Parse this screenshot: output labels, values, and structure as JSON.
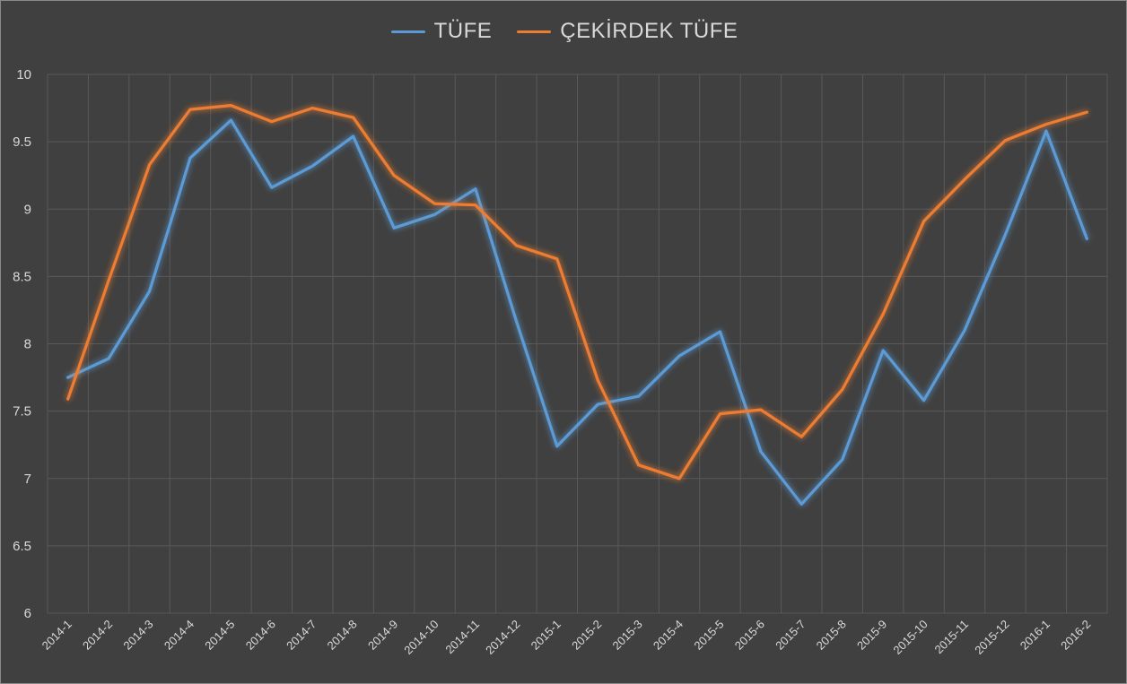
{
  "chart_data": {
    "type": "line",
    "title": "",
    "xlabel": "",
    "ylabel": "",
    "ylim": [
      6,
      10
    ],
    "yticks": [
      6,
      6.5,
      7,
      7.5,
      8,
      8.5,
      9,
      9.5,
      10
    ],
    "grid": true,
    "legend_position": "top",
    "categories": [
      "2014-1",
      "2014-2",
      "2014-3",
      "2014-4",
      "2014-5",
      "2014-6",
      "2014-7",
      "2014-8",
      "2014-9",
      "2014-10",
      "2014-11",
      "2014-12",
      "2015-1",
      "2015-2",
      "2015-3",
      "2015-4",
      "2015-5",
      "2015-6",
      "2015-7",
      "2015-8",
      "2015-9",
      "2015-10",
      "2015-11",
      "2015-12",
      "2016-1",
      "2016-2"
    ],
    "series": [
      {
        "name": "TÜFE",
        "color": "#5b9bd5",
        "values": [
          7.75,
          7.89,
          8.39,
          9.38,
          9.66,
          9.16,
          9.32,
          9.54,
          8.86,
          8.96,
          9.15,
          8.17,
          7.24,
          7.55,
          7.61,
          7.91,
          8.09,
          7.2,
          6.81,
          7.14,
          7.95,
          7.58,
          8.1,
          8.81,
          9.58,
          8.78
        ]
      },
      {
        "name": "ÇEKİRDEK TÜFE",
        "color": "#ed7d31",
        "values": [
          7.59,
          8.47,
          9.33,
          9.74,
          9.77,
          9.65,
          9.75,
          9.68,
          9.25,
          9.04,
          9.03,
          8.73,
          8.63,
          7.73,
          7.1,
          7.0,
          7.48,
          7.51,
          7.31,
          7.66,
          8.22,
          8.91,
          9.22,
          9.51,
          9.63,
          9.72
        ]
      }
    ]
  },
  "colors": {
    "background": "#404040",
    "grid": "#595959",
    "text": "#d9d9d9"
  }
}
